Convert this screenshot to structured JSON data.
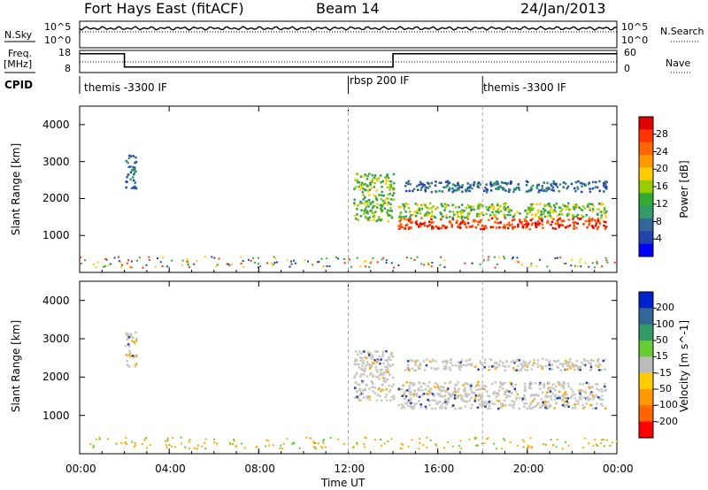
{
  "header": {
    "station": "Fort Hays East (fitACF)",
    "beam": "Beam 14",
    "date": "24/Jan/2013"
  },
  "top_panels": {
    "nsky_label": "N.Sky",
    "nsky_ticks": [
      "10^5",
      "10^0"
    ],
    "nsearch_label": "N.Search",
    "nsearch_ticks": [
      "10^5",
      "10^0"
    ],
    "freq_label": "Freq.",
    "freq_unit": "[MHz]",
    "freq_ticks": [
      18,
      8
    ],
    "nave_label": "Nave",
    "nave_ticks": [
      60,
      0
    ],
    "cpid_label": "CPID",
    "cpid_segments": [
      {
        "name": "themis -3300 IF",
        "start_hour": 0
      },
      {
        "name": "rbsp 200 IF",
        "start_hour": 12
      },
      {
        "name": "themis -3300 IF",
        "start_hour": 18
      }
    ],
    "freq_series": {
      "hours": [
        0,
        2,
        14,
        24
      ],
      "mhz": [
        16.5,
        10.5,
        16.5,
        16.5
      ]
    }
  },
  "chart_data": [
    {
      "type": "heatmap",
      "title": "",
      "xlabel": "Time UT",
      "ylabel": "Slant Range [km]",
      "xlim": [
        0,
        24
      ],
      "ylim": [
        0,
        4500
      ],
      "x_ticks": [
        "00:00",
        "04:00",
        "08:00",
        "12:00",
        "16:00",
        "20:00",
        "00:00"
      ],
      "x_tick_hours": [
        0,
        4,
        8,
        12,
        16,
        20,
        24
      ],
      "y_ticks": [
        1000,
        2000,
        3000,
        4000
      ],
      "colorbar": {
        "label": "Power [dB]",
        "ticks": [
          "28",
          "24",
          "20",
          "16",
          "12",
          "8",
          "4"
        ],
        "colors": [
          "#e00000",
          "#ff3300",
          "#ff6600",
          "#ff9900",
          "#ffcc00",
          "#99cc00",
          "#33aa33",
          "#339966",
          "#336699",
          "#2244aa",
          "#0000ff"
        ]
      },
      "scatter_regions": [
        {
          "t0": 14.2,
          "t1": 23.5,
          "r0": 1200,
          "r1": 1500,
          "level": "high"
        },
        {
          "t0": 14.2,
          "t1": 23.5,
          "r0": 1500,
          "r1": 1900,
          "level": "mid"
        },
        {
          "t0": 14.5,
          "t1": 23.5,
          "r0": 2200,
          "r1": 2500,
          "level": "low"
        },
        {
          "t0": 12.2,
          "t1": 14.0,
          "r0": 1400,
          "r1": 2700,
          "level": "mid"
        },
        {
          "t0": 2.0,
          "t1": 2.5,
          "r0": 2300,
          "r1": 3200,
          "level": "low"
        }
      ]
    },
    {
      "type": "heatmap",
      "title": "",
      "xlabel": "Time UT",
      "ylabel": "Slant Range [km]",
      "xlim": [
        0,
        24
      ],
      "ylim": [
        0,
        4500
      ],
      "x_ticks": [
        "00:00",
        "04:00",
        "08:00",
        "12:00",
        "16:00",
        "20:00",
        "00:00"
      ],
      "x_tick_hours": [
        0,
        4,
        8,
        12,
        16,
        20,
        24
      ],
      "y_ticks": [
        1000,
        2000,
        3000,
        4000
      ],
      "colorbar": {
        "label": "Velocity [m s^-1]",
        "ticks": [
          "200",
          "100",
          "50",
          "15",
          "-15",
          "-50",
          "-100",
          "-200"
        ],
        "colors": [
          "#0022cc",
          "#336699",
          "#339966",
          "#66cc33",
          "#bbbbbb",
          "#ffcc00",
          "#ff9900",
          "#ff6600",
          "#ff0000"
        ]
      },
      "scatter_regions": [
        {
          "t0": 14.2,
          "t1": 23.5,
          "r0": 1200,
          "r1": 1900,
          "level": "ground"
        },
        {
          "t0": 14.5,
          "t1": 23.5,
          "r0": 2200,
          "r1": 2500,
          "level": "ground"
        },
        {
          "t0": 12.2,
          "t1": 14.0,
          "r0": 1400,
          "r1": 2700,
          "level": "ground"
        },
        {
          "t0": 2.0,
          "t1": 2.5,
          "r0": 2300,
          "r1": 3200,
          "level": "ground"
        }
      ]
    }
  ]
}
